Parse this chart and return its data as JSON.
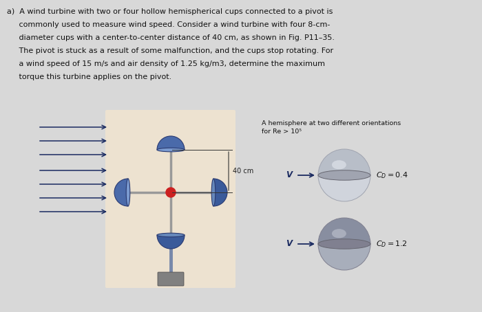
{
  "bg_color": "#d8d8d8",
  "panel_bg": "#f0e4d0",
  "text_color": "#111111",
  "arrow_color": "#1a2a60",
  "cup_main": "#4a6aaa",
  "cup_dark": "#2a3a70",
  "cup_light": "#7a9ad0",
  "arm_color": "#999999",
  "pole_color": "#7788aa",
  "pivot_color": "#cc2020",
  "base_color": "#808080",
  "hemi_top_color": "#b0b8c4",
  "hemi_bot_color": "#909aaa",
  "hemi_rim": "#888898",
  "hemi_highlight": "#d8dce8",
  "title_line1": "a)  A wind turbine with two or four hollow hemispherical cups connected to a pivot is",
  "title_line2": "     commonly used to measure wind speed. Consider a wind turbine with four 8-cm-",
  "title_line3": "     diameter cups with a center-to-center distance of 40 cm, as shown in Fig. P11–35.",
  "title_line4": "     The pivot is stuck as a result of some malfunction, and the cups stop rotating. For",
  "title_line5": "     a wind speed of 15 m/s and air density of 1.25 kg/m3, determine the maximum",
  "title_line6": "     torque this turbine applies on the pivot.",
  "hemi_title": "A hemisphere at two different orientations\nfor Re > 10⁵",
  "label_40cm": "40 cm",
  "cd1_label": "$C_D=0.4$",
  "cd2_label": "$C_D=1.2$",
  "v_label": "V"
}
